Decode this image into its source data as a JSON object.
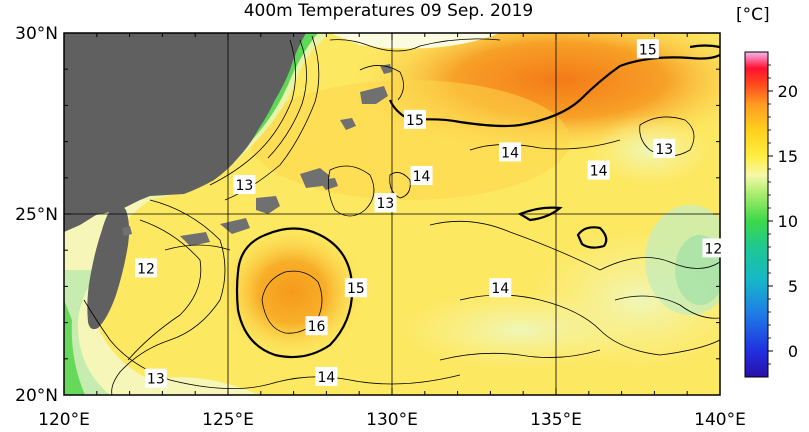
{
  "map": {
    "title": "400m Temperatures  09 Sep. 2019",
    "variable": "Temperature at 400m depth",
    "lat_range": [
      20,
      30
    ],
    "lon_range": [
      120,
      140
    ],
    "lat_ticks": [
      {
        "value": 30,
        "label": "30°N"
      },
      {
        "value": 25,
        "label": "25°N"
      },
      {
        "value": 20,
        "label": "20°N"
      }
    ],
    "lon_ticks": [
      {
        "value": 120,
        "label": "120°E"
      },
      {
        "value": 125,
        "label": "125°E"
      },
      {
        "value": 130,
        "label": "130°E"
      },
      {
        "value": 135,
        "label": "135°E"
      },
      {
        "value": 140,
        "label": "140°E"
      }
    ],
    "contour_labels": [
      {
        "text": "15",
        "lon": 137.8,
        "lat": 29.55
      },
      {
        "text": "15",
        "lon": 130.7,
        "lat": 27.6
      },
      {
        "text": "14",
        "lon": 133.6,
        "lat": 26.7
      },
      {
        "text": "14",
        "lon": 136.3,
        "lat": 26.2
      },
      {
        "text": "13",
        "lon": 138.3,
        "lat": 26.8
      },
      {
        "text": "14",
        "lon": 130.9,
        "lat": 26.05
      },
      {
        "text": "13",
        "lon": 125.5,
        "lat": 25.8
      },
      {
        "text": "13",
        "lon": 129.8,
        "lat": 25.3
      },
      {
        "text": "12",
        "lon": 139.8,
        "lat": 24.05
      },
      {
        "text": "12",
        "lon": 122.5,
        "lat": 23.5
      },
      {
        "text": "15",
        "lon": 128.9,
        "lat": 22.95
      },
      {
        "text": "14",
        "lon": 133.3,
        "lat": 22.95
      },
      {
        "text": "16",
        "lon": 127.7,
        "lat": 21.9
      },
      {
        "text": "13",
        "lon": 122.8,
        "lat": 20.45
      },
      {
        "text": "14",
        "lon": 128.0,
        "lat": 20.5
      }
    ]
  },
  "colorbar": {
    "unit_label": "[°C]",
    "range": [
      -2,
      23
    ],
    "ticks": [
      "0",
      "5",
      "10",
      "15",
      "20"
    ],
    "tick_values": [
      0,
      5,
      10,
      15,
      20
    ],
    "colors": {
      "land": "#606060",
      "cold": "#2f1bb5",
      "warm": "#f3c6f0"
    }
  }
}
